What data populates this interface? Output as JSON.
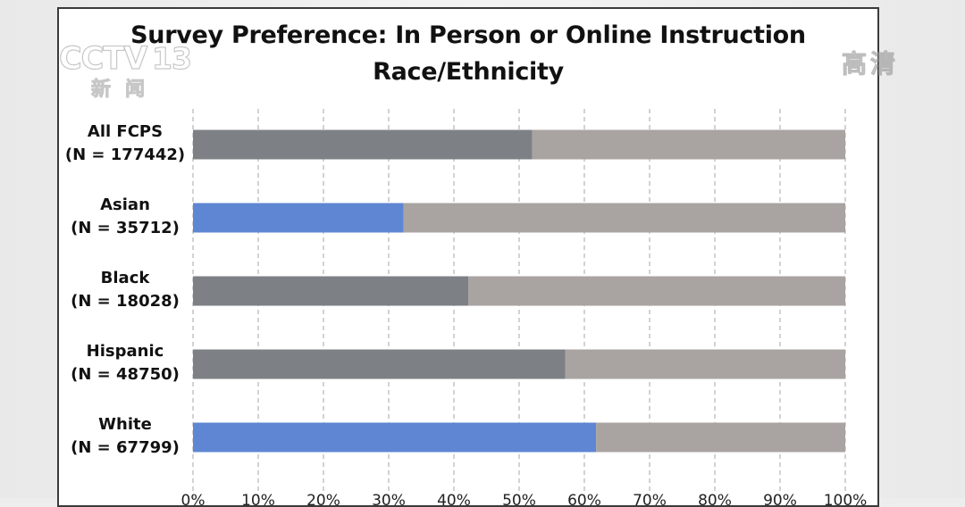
{
  "watermark": {
    "brand": "CCTV",
    "channel_number": "13",
    "channel_name": "新闻",
    "quality": "高清"
  },
  "chart_data": {
    "type": "bar",
    "stacked": true,
    "orientation": "horizontal",
    "title": "Survey Preference: In Person or Online Instruction",
    "subtitle": "Race/Ethnicity",
    "categories": [
      "All FCPS\n(N = 177442)",
      "Asian\n(N = 35712)",
      "Black\n(N = 18028)",
      "Hispanic\n(N = 48750)",
      "White\n(N = 67799)"
    ],
    "category_lines": [
      [
        "All FCPS",
        "(N = 177442)"
      ],
      [
        "Asian",
        "(N = 35712)"
      ],
      [
        "Black",
        "(N = 18028)"
      ],
      [
        "Hispanic",
        "(N = 48750)"
      ],
      [
        "White",
        "(N = 67799)"
      ]
    ],
    "series": [
      {
        "values": [
          52,
          32.3,
          42.2,
          57.1,
          61.8
        ],
        "colors": [
          "#7d8185",
          "#5e86d2",
          "#7d8185",
          "#7d8185",
          "#5e86d2"
        ]
      },
      {
        "values": [
          48,
          67.7,
          57.8,
          42.9,
          38.2
        ],
        "colors": [
          "#a9a3a1",
          "#a9a3a1",
          "#a9a3a1",
          "#a9a3a1",
          "#a9a3a1"
        ]
      }
    ],
    "x_ticks": [
      "0%",
      "10%",
      "20%",
      "30%",
      "40%",
      "50%",
      "60%",
      "70%",
      "80%",
      "90%",
      "100%"
    ],
    "xlim": [
      0,
      100
    ],
    "grid": "vertical dashed",
    "legend": "none"
  }
}
